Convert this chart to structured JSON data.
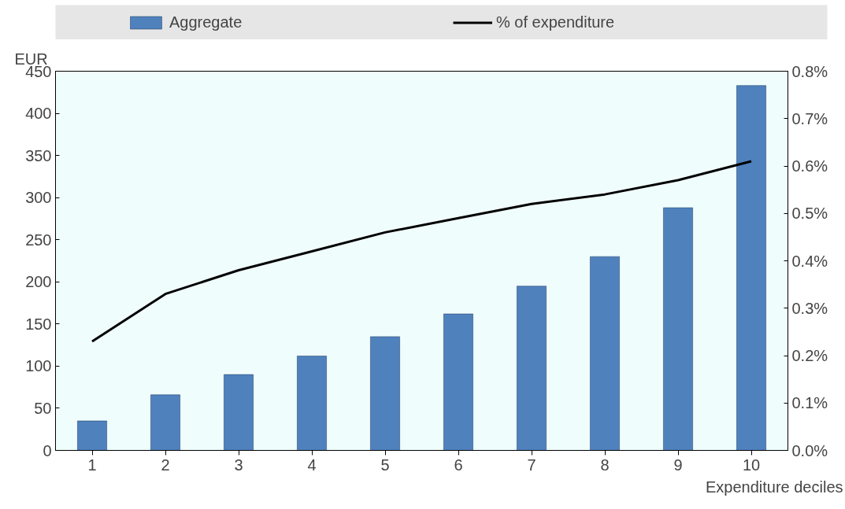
{
  "chart_data": {
    "type": "bar",
    "ylabel": "EUR",
    "xlabel": "Expenditure deciles",
    "categories": [
      "1",
      "2",
      "3",
      "4",
      "5",
      "6",
      "7",
      "8",
      "9",
      "10"
    ],
    "series": [
      {
        "name": "Aggregate",
        "color": "#4f81bd",
        "values": [
          35,
          66,
          90,
          112,
          135,
          162,
          195,
          230,
          288,
          433
        ]
      },
      {
        "name": "% of expenditure",
        "type": "line",
        "axis": "y2",
        "color": "#000000",
        "values": [
          0.23,
          0.33,
          0.38,
          0.42,
          0.46,
          0.49,
          0.52,
          0.54,
          0.57,
          0.61
        ]
      }
    ],
    "ylim": [
      0,
      450
    ],
    "yticks": [
      0,
      50,
      100,
      150,
      200,
      250,
      300,
      350,
      400,
      450
    ],
    "y2lim": [
      0,
      0.8
    ],
    "y2ticks": [
      {
        "value": 0,
        "label": "0.0%"
      },
      {
        "value": 0.1,
        "label": "0.1%"
      },
      {
        "value": 0.2,
        "label": "0.2%"
      },
      {
        "value": 0.3,
        "label": "0.3%"
      },
      {
        "value": 0.4,
        "label": "0.4%"
      },
      {
        "value": 0.5,
        "label": "0.5%"
      },
      {
        "value": 0.6,
        "label": "0.6%"
      },
      {
        "value": 0.7,
        "label": "0.7%"
      },
      {
        "value": 0.8,
        "label": "0.8%"
      }
    ],
    "legend": "top",
    "grid": false,
    "marker": "none"
  }
}
